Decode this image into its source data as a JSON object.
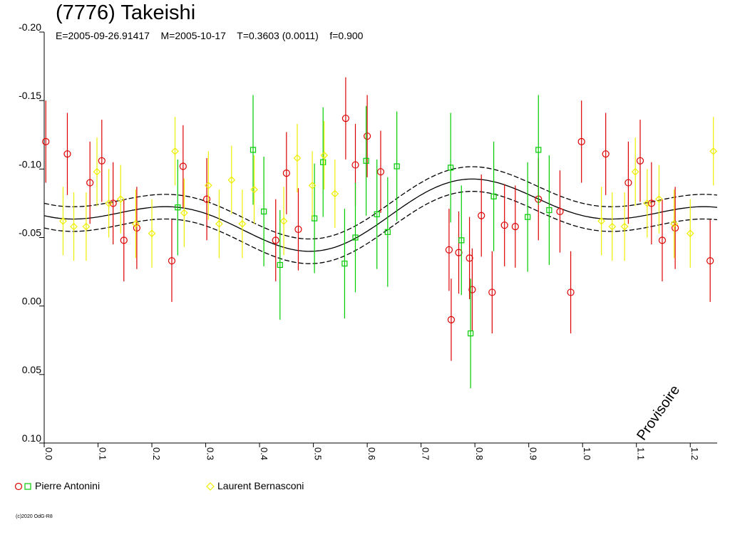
{
  "title": "(7776) Takeishi",
  "subtitle": "E=2005-09-26.91417    M=2005-10-17    T=0.3603 (0.0011)    f=0.900",
  "stamp": "Provisoire",
  "copyright": "(c)2020 OdG-R8",
  "colors": {
    "red": "#dd0000",
    "green": "#00cc00",
    "yellow": "#eeee00"
  },
  "legend": [
    {
      "label": "Pierre Antonini",
      "markers": [
        "circle",
        "square"
      ],
      "colors": [
        "#dd0000",
        "#00cc00"
      ]
    },
    {
      "label": "Laurent Bernasconi",
      "markers": [
        "diamond"
      ],
      "colors": [
        "#eeee00"
      ]
    }
  ],
  "chart_data": {
    "type": "scatter",
    "title": "(7776) Takeishi",
    "xlim": [
      0.0,
      1.25
    ],
    "ylim": [
      -0.2,
      0.1
    ],
    "y_inverted": true,
    "xticks": [
      0.0,
      0.1,
      0.2,
      0.3,
      0.4,
      0.5,
      0.6,
      0.7,
      0.8,
      0.9,
      1.0,
      1.1,
      1.2
    ],
    "xtick_labels": [
      "0.0",
      "0.1",
      "0.2",
      "0.3",
      "0.4",
      "0.5",
      "0.6",
      "0.7",
      "0.8",
      "0.9",
      "1.0",
      "1.1",
      "1.2"
    ],
    "yticks": [
      -0.2,
      -0.15,
      -0.1,
      -0.05,
      0.0,
      0.05,
      0.1
    ],
    "ytick_labels": [
      "-0.20",
      "-0.15",
      "-0.10",
      "-0.05",
      "0.00",
      "0.05",
      "0.10"
    ],
    "model_curve": {
      "mean": -0.067,
      "harmonics": [
        {
          "order": 1,
          "cos": -0.013,
          "sin": 0.009
        },
        {
          "order": 2,
          "cos": 0.014,
          "sin": 0.003
        }
      ],
      "band": 0.009
    },
    "series": [
      {
        "name": "Pierre Antonini",
        "marker": "circle",
        "color": "#dd0000",
        "points": [
          [
            0.003,
            -0.12,
            0.03
          ],
          [
            0.043,
            -0.111,
            0.03
          ],
          [
            0.085,
            -0.09,
            0.03
          ],
          [
            0.107,
            -0.106,
            0.03
          ],
          [
            0.128,
            -0.075,
            0.03
          ],
          [
            0.148,
            -0.048,
            0.03
          ],
          [
            0.172,
            -0.057,
            0.03
          ],
          [
            0.237,
            -0.033,
            0.03
          ],
          [
            0.258,
            -0.102,
            0.03
          ],
          [
            0.302,
            -0.078,
            0.03
          ],
          [
            0.43,
            -0.048,
            0.03
          ],
          [
            0.45,
            -0.097,
            0.03
          ],
          [
            0.472,
            -0.056,
            0.03
          ],
          [
            0.56,
            -0.137,
            0.03
          ],
          [
            0.578,
            -0.103,
            0.03
          ],
          [
            0.6,
            -0.124,
            0.03
          ],
          [
            0.625,
            -0.098,
            0.03
          ],
          [
            0.752,
            -0.041,
            0.03
          ],
          [
            0.756,
            0.01,
            0.03
          ],
          [
            0.77,
            -0.039,
            0.03
          ],
          [
            0.79,
            -0.035,
            0.03
          ],
          [
            0.795,
            -0.012,
            0.03
          ],
          [
            0.812,
            -0.066,
            0.03
          ],
          [
            0.832,
            -0.01,
            0.03
          ],
          [
            0.855,
            -0.059,
            0.03
          ],
          [
            0.875,
            -0.058,
            0.03
          ],
          [
            0.918,
            -0.078,
            0.03
          ],
          [
            0.958,
            -0.069,
            0.03
          ],
          [
            0.978,
            -0.01,
            0.03
          ],
          [
            0.998,
            -0.12,
            0.03
          ],
          [
            1.043,
            -0.111,
            0.03
          ],
          [
            1.085,
            -0.09,
            0.03
          ],
          [
            1.107,
            -0.106,
            0.03
          ],
          [
            1.128,
            -0.075,
            0.03
          ],
          [
            1.148,
            -0.048,
            0.03
          ],
          [
            1.172,
            -0.057,
            0.03
          ],
          [
            1.237,
            -0.033,
            0.03
          ]
        ]
      },
      {
        "name": "Pierre Antonini",
        "marker": "square",
        "color": "#00cc00",
        "points": [
          [
            0.248,
            -0.072,
            0.035
          ],
          [
            0.388,
            -0.114,
            0.04
          ],
          [
            0.408,
            -0.069,
            0.04
          ],
          [
            0.438,
            -0.03,
            0.04
          ],
          [
            0.502,
            -0.064,
            0.04
          ],
          [
            0.518,
            -0.105,
            0.04
          ],
          [
            0.558,
            -0.031,
            0.04
          ],
          [
            0.578,
            -0.05,
            0.04
          ],
          [
            0.598,
            -0.106,
            0.04
          ],
          [
            0.618,
            -0.067,
            0.04
          ],
          [
            0.638,
            -0.054,
            0.04
          ],
          [
            0.655,
            -0.102,
            0.04
          ],
          [
            0.755,
            -0.101,
            0.04
          ],
          [
            0.775,
            -0.048,
            0.04
          ],
          [
            0.792,
            0.02,
            0.04
          ],
          [
            0.835,
            -0.08,
            0.04
          ],
          [
            0.898,
            -0.065,
            0.04
          ],
          [
            0.918,
            -0.114,
            0.04
          ],
          [
            0.938,
            -0.07,
            0.04
          ]
        ]
      },
      {
        "name": "Laurent Bernasconi",
        "marker": "diamond",
        "color": "#eeee00",
        "points": [
          [
            0.035,
            -0.062,
            0.025
          ],
          [
            0.055,
            -0.058,
            0.025
          ],
          [
            0.078,
            -0.058,
            0.025
          ],
          [
            0.098,
            -0.098,
            0.025
          ],
          [
            0.12,
            -0.075,
            0.025
          ],
          [
            0.142,
            -0.078,
            0.025
          ],
          [
            0.17,
            -0.06,
            0.025
          ],
          [
            0.2,
            -0.053,
            0.025
          ],
          [
            0.243,
            -0.113,
            0.025
          ],
          [
            0.26,
            -0.068,
            0.025
          ],
          [
            0.305,
            -0.088,
            0.025
          ],
          [
            0.325,
            -0.06,
            0.025
          ],
          [
            0.348,
            -0.092,
            0.025
          ],
          [
            0.368,
            -0.06,
            0.025
          ],
          [
            0.39,
            -0.085,
            0.025
          ],
          [
            0.445,
            -0.062,
            0.025
          ],
          [
            0.47,
            -0.108,
            0.025
          ],
          [
            0.498,
            -0.088,
            0.025
          ],
          [
            0.52,
            -0.11,
            0.025
          ],
          [
            0.54,
            -0.082,
            0.025
          ],
          [
            1.035,
            -0.062,
            0.025
          ],
          [
            1.055,
            -0.058,
            0.025
          ],
          [
            1.078,
            -0.058,
            0.025
          ],
          [
            1.098,
            -0.098,
            0.025
          ],
          [
            1.12,
            -0.075,
            0.025
          ],
          [
            1.142,
            -0.078,
            0.025
          ],
          [
            1.17,
            -0.06,
            0.025
          ],
          [
            1.2,
            -0.053,
            0.025
          ],
          [
            1.243,
            -0.113,
            0.025
          ]
        ]
      }
    ]
  }
}
